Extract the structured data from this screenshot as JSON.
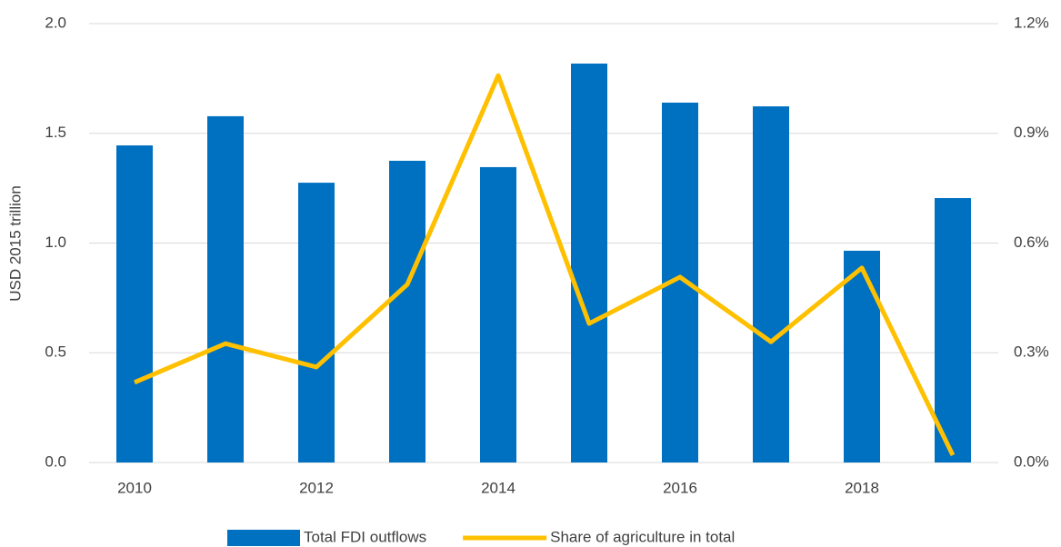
{
  "chart_data": {
    "type": "bar-line",
    "y_label": "USD 2015 trillion",
    "categories": [
      2010,
      null,
      2012,
      null,
      2014,
      null,
      2016,
      null,
      2018,
      null
    ],
    "series": [
      {
        "name": "Total FDI outflows",
        "type": "bar",
        "color": "#0070c0",
        "values": [
          1.445,
          1.578,
          1.275,
          1.375,
          1.346,
          1.818,
          1.64,
          1.623,
          0.965,
          1.205
        ]
      },
      {
        "name": "Share of agriculture in total",
        "type": "line",
        "axis": "y2",
        "color": "#ffc000",
        "values": [
          0.219,
          0.325,
          0.261,
          0.487,
          1.058,
          0.38,
          0.507,
          0.33,
          0.532,
          0.02
        ]
      }
    ],
    "ylim": [
      0,
      2
    ],
    "yticks": [
      {
        "value": 0,
        "label": "0.0"
      },
      0.5,
      {
        "value": 1,
        "label": "1.0"
      },
      1.5,
      {
        "value": 2,
        "label": "2.0"
      }
    ],
    "y2lim": [
      0,
      1.2
    ],
    "y2ticks": [
      {
        "value": 0,
        "label": "0.0%"
      },
      {
        "value": 0.3,
        "label": "0.3%"
      },
      {
        "value": 0.6,
        "label": "0.6%"
      },
      {
        "value": 0.9,
        "label": "0.9%"
      },
      {
        "value": 1.2,
        "label": "1.2%"
      }
    ],
    "grid": true,
    "legend": "bottom"
  }
}
